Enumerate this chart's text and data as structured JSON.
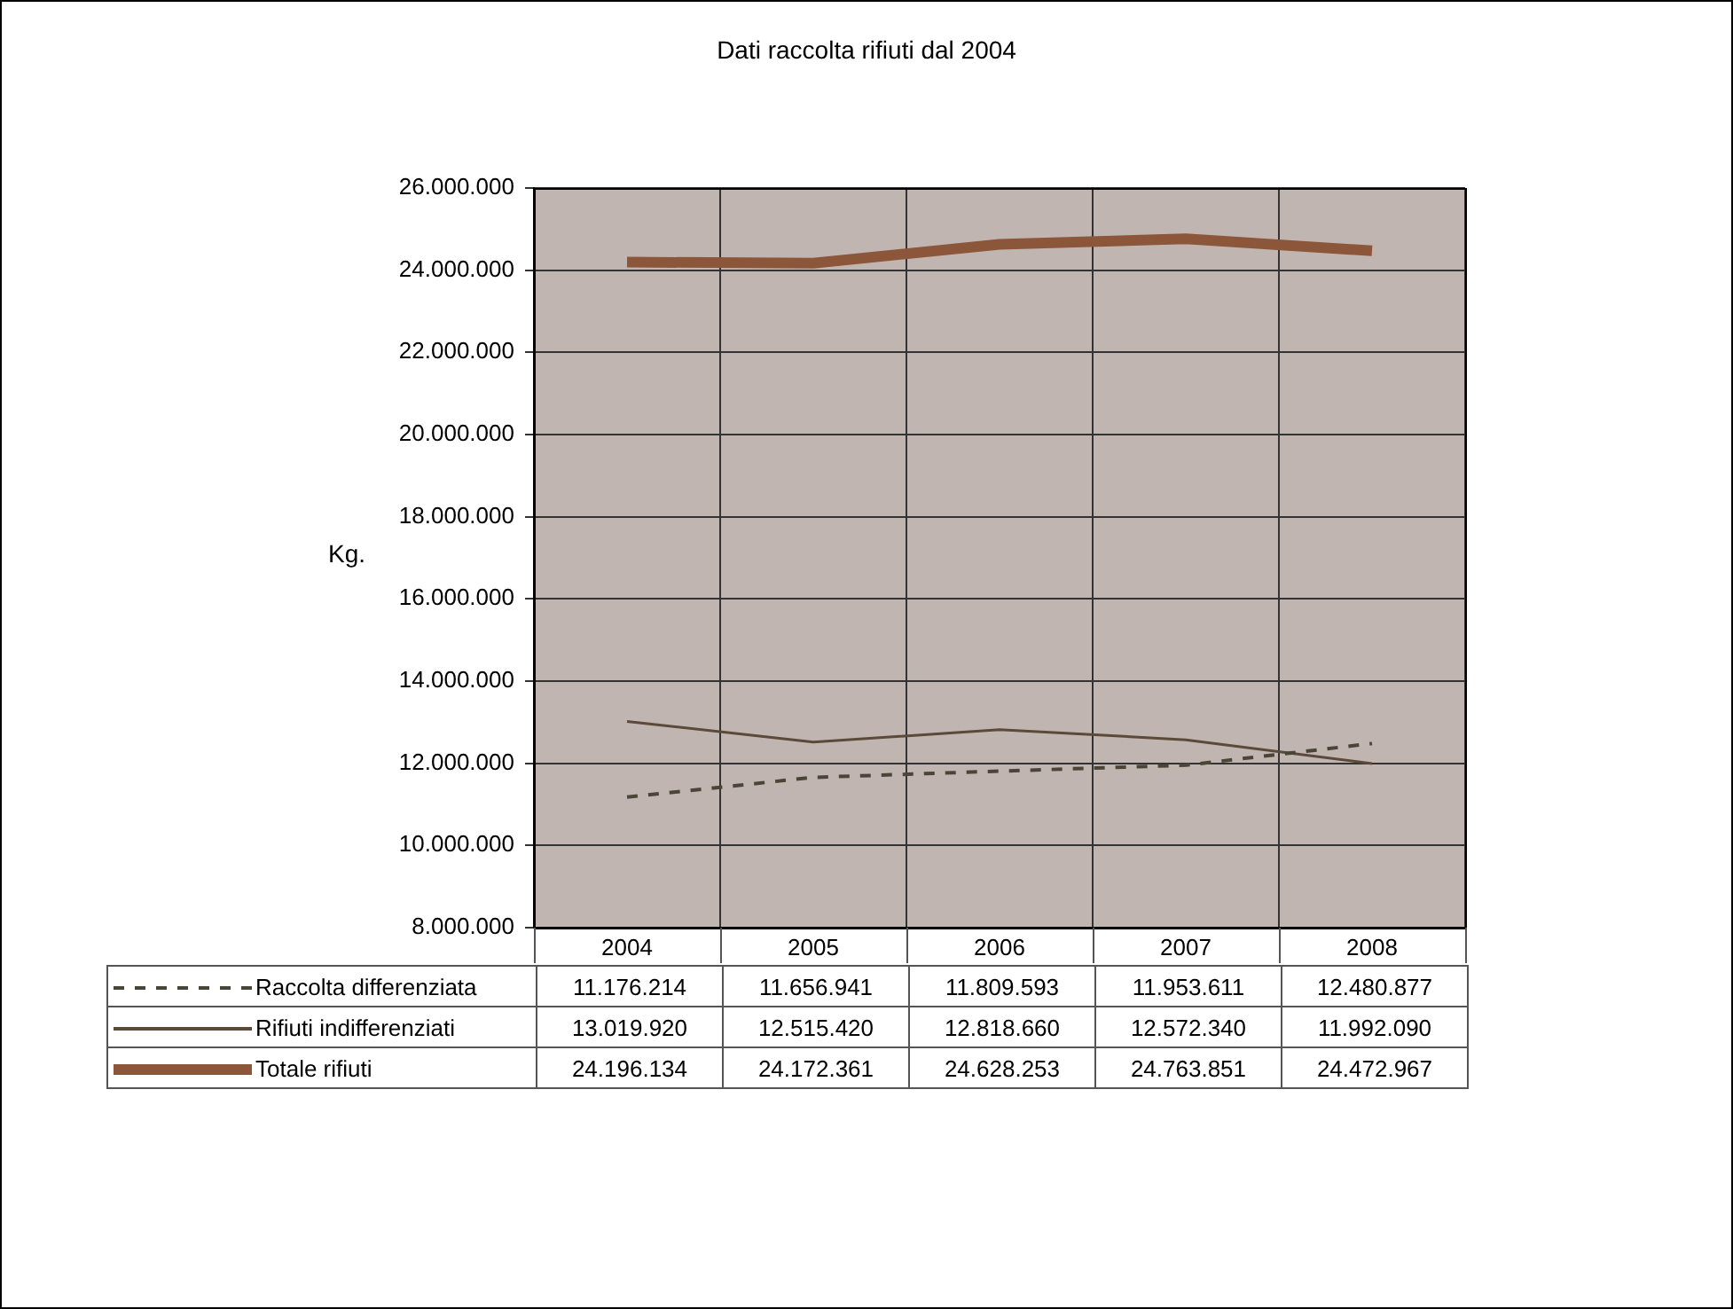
{
  "chart_data": {
    "type": "line",
    "title": "Dati raccolta rifiuti dal 2004",
    "ylabel": "Kg.",
    "categories": [
      "2004",
      "2005",
      "2006",
      "2007",
      "2008"
    ],
    "series": [
      {
        "name": "Raccolta differenziata",
        "color": "#4a4536",
        "line_style": "dashed",
        "values": [
          11176214,
          11656941,
          11809593,
          11953611,
          12480877
        ],
        "value_labels": [
          "11.176.214",
          "11.656.941",
          "11.809.593",
          "11.953.611",
          "12.480.877"
        ]
      },
      {
        "name": "Rifiuti indifferenziati",
        "color": "#5b4a3a",
        "line_style": "solid",
        "values": [
          13019920,
          12515420,
          12818660,
          12572340,
          11992090
        ],
        "value_labels": [
          "13.019.920",
          "12.515.420",
          "12.818.660",
          "12.572.340",
          "11.992.090"
        ]
      },
      {
        "name": "Totale rifiuti",
        "color": "#8b563a",
        "line_style": "solid",
        "values": [
          24196134,
          24172361,
          24628253,
          24763851,
          24472967
        ],
        "value_labels": [
          "24.196.134",
          "24.172.361",
          "24.628.253",
          "24.763.851",
          "24.472.967"
        ]
      }
    ],
    "ylim": [
      8000000,
      26000000
    ],
    "yticks": [
      {
        "value": 8000000,
        "label": "8.000.000"
      },
      {
        "value": 10000000,
        "label": "10.000.000"
      },
      {
        "value": 12000000,
        "label": "12.000.000"
      },
      {
        "value": 14000000,
        "label": "14.000.000"
      },
      {
        "value": 16000000,
        "label": "16.000.000"
      },
      {
        "value": 18000000,
        "label": "18.000.000"
      },
      {
        "value": 20000000,
        "label": "20.000.000"
      },
      {
        "value": 22000000,
        "label": "22.000.000"
      },
      {
        "value": 24000000,
        "label": "24.000.000"
      },
      {
        "value": 26000000,
        "label": "26.000.000"
      }
    ],
    "grid": true,
    "legend": "bottom",
    "marker": "none"
  }
}
